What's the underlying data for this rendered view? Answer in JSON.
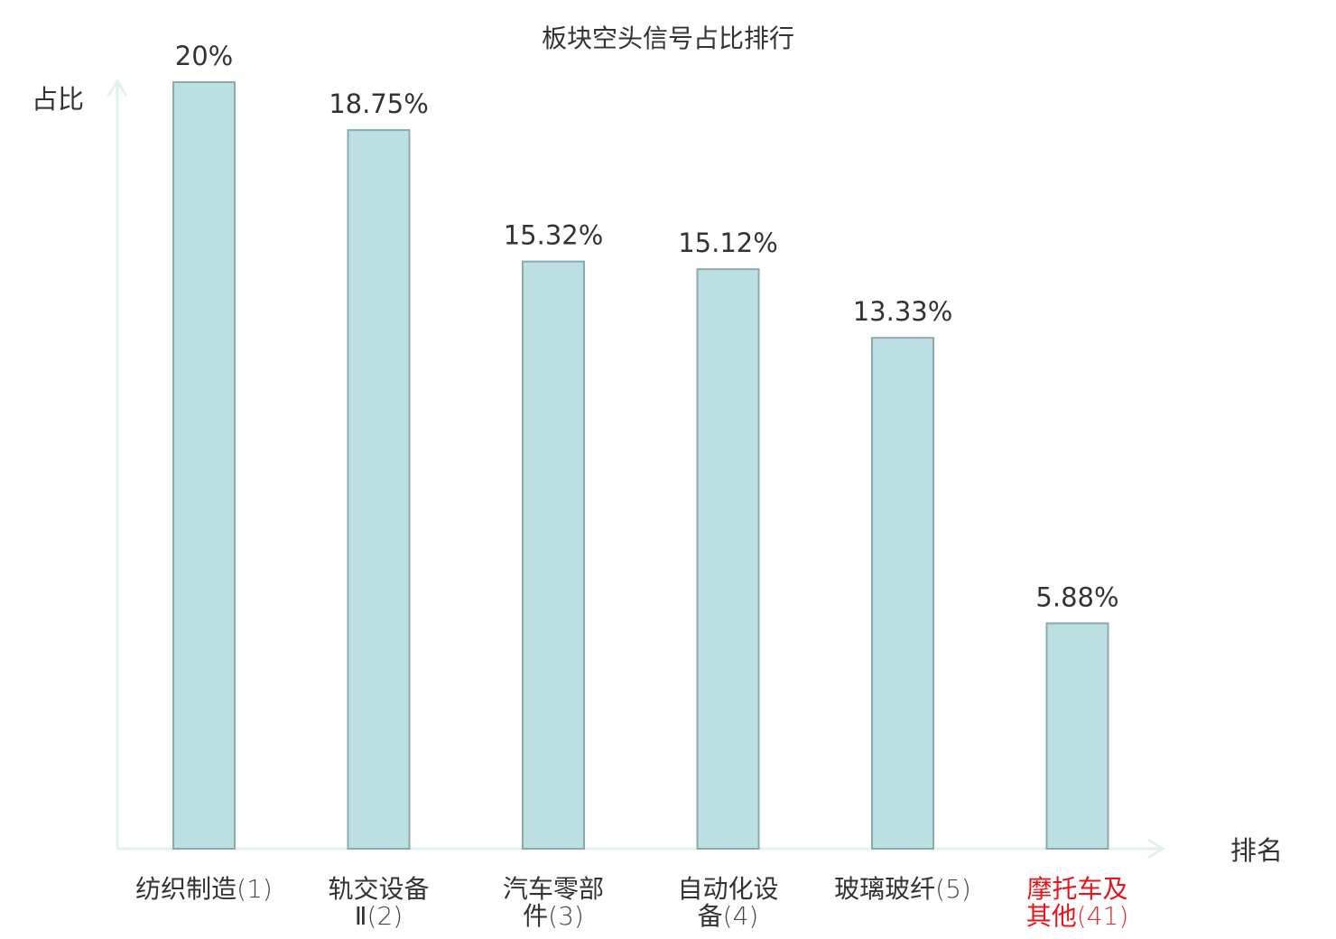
{
  "chart_data": {
    "type": "bar",
    "title": "板块空头信号占比排行",
    "ylabel": "占比",
    "xlabel": "排名",
    "ylim": [
      0,
      20
    ],
    "grid": false,
    "categories": [
      {
        "lines": [
          "纺织制造"
        ],
        "rank": "(1)",
        "highlight": false
      },
      {
        "lines": [
          "轨交设备",
          "Ⅱ"
        ],
        "rank": "(2)",
        "highlight": false
      },
      {
        "lines": [
          "汽车零部",
          "件"
        ],
        "rank": "(3)",
        "highlight": false
      },
      {
        "lines": [
          "自动化设",
          "备"
        ],
        "rank": "(4)",
        "highlight": false
      },
      {
        "lines": [
          "玻璃玻纤"
        ],
        "rank": "(5)",
        "highlight": false
      },
      {
        "lines": [
          "摩托车及",
          "其他"
        ],
        "rank": "(41)",
        "highlight": true
      }
    ],
    "values": [
      20,
      18.75,
      15.32,
      15.12,
      13.33,
      5.88
    ],
    "data_labels": [
      "20%",
      "18.75%",
      "15.32%",
      "15.12%",
      "13.33%",
      "5.88%"
    ],
    "colors": {
      "bar_fill": "#bce0e2",
      "bar_stroke": "#8aabad",
      "axis": "#dff2f0",
      "text": "#333333",
      "highlight_text": "#e8141a"
    }
  }
}
